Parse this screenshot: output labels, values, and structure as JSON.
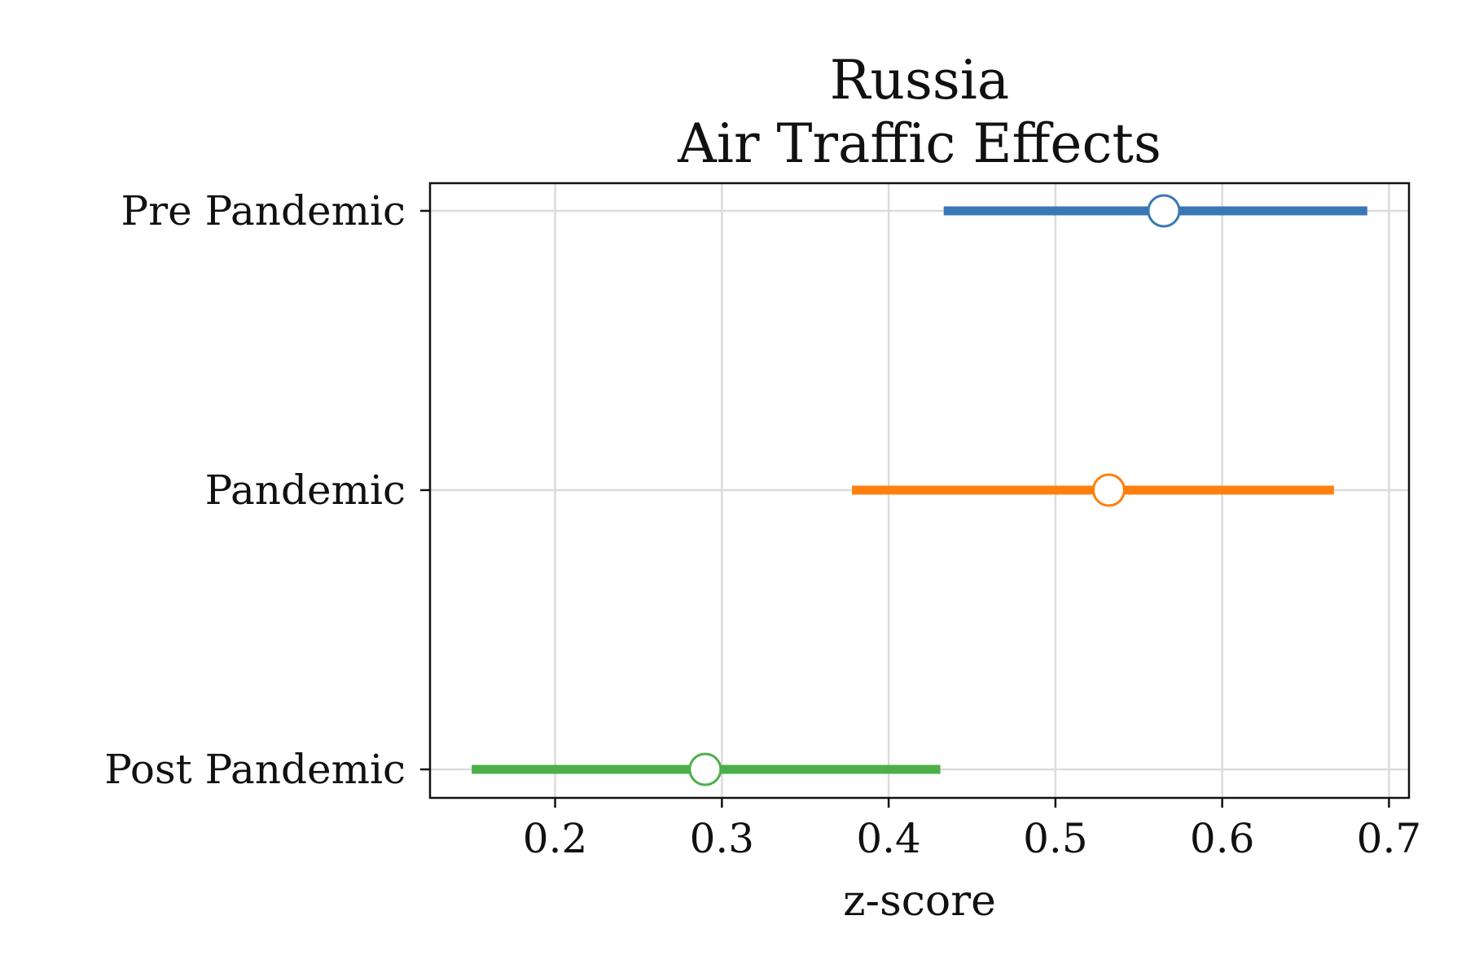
{
  "chart_data": {
    "type": "forest",
    "title": [
      "Russia",
      "Air Traffic Effects"
    ],
    "xlabel": "z-score",
    "ylabel": "",
    "xlim": [
      0.125,
      0.712
    ],
    "xticks": [
      0.2,
      0.3,
      0.4,
      0.5,
      0.6,
      0.7
    ],
    "xtick_labels": [
      "0.2",
      "0.3",
      "0.4",
      "0.5",
      "0.6",
      "0.7"
    ],
    "grid": true,
    "categories": [
      "Pre Pandemic",
      "Pandemic",
      "Post Pandemic"
    ],
    "series": [
      {
        "category": "Pre Pandemic",
        "estimate": 0.565,
        "lower": 0.433,
        "upper": 0.687,
        "color": "#3a78b5"
      },
      {
        "category": "Pandemic",
        "estimate": 0.532,
        "lower": 0.378,
        "upper": 0.667,
        "color": "#ff7f0e"
      },
      {
        "category": "Post Pandemic",
        "estimate": 0.29,
        "lower": 0.15,
        "upper": 0.431,
        "color": "#4daf4a"
      }
    ]
  }
}
